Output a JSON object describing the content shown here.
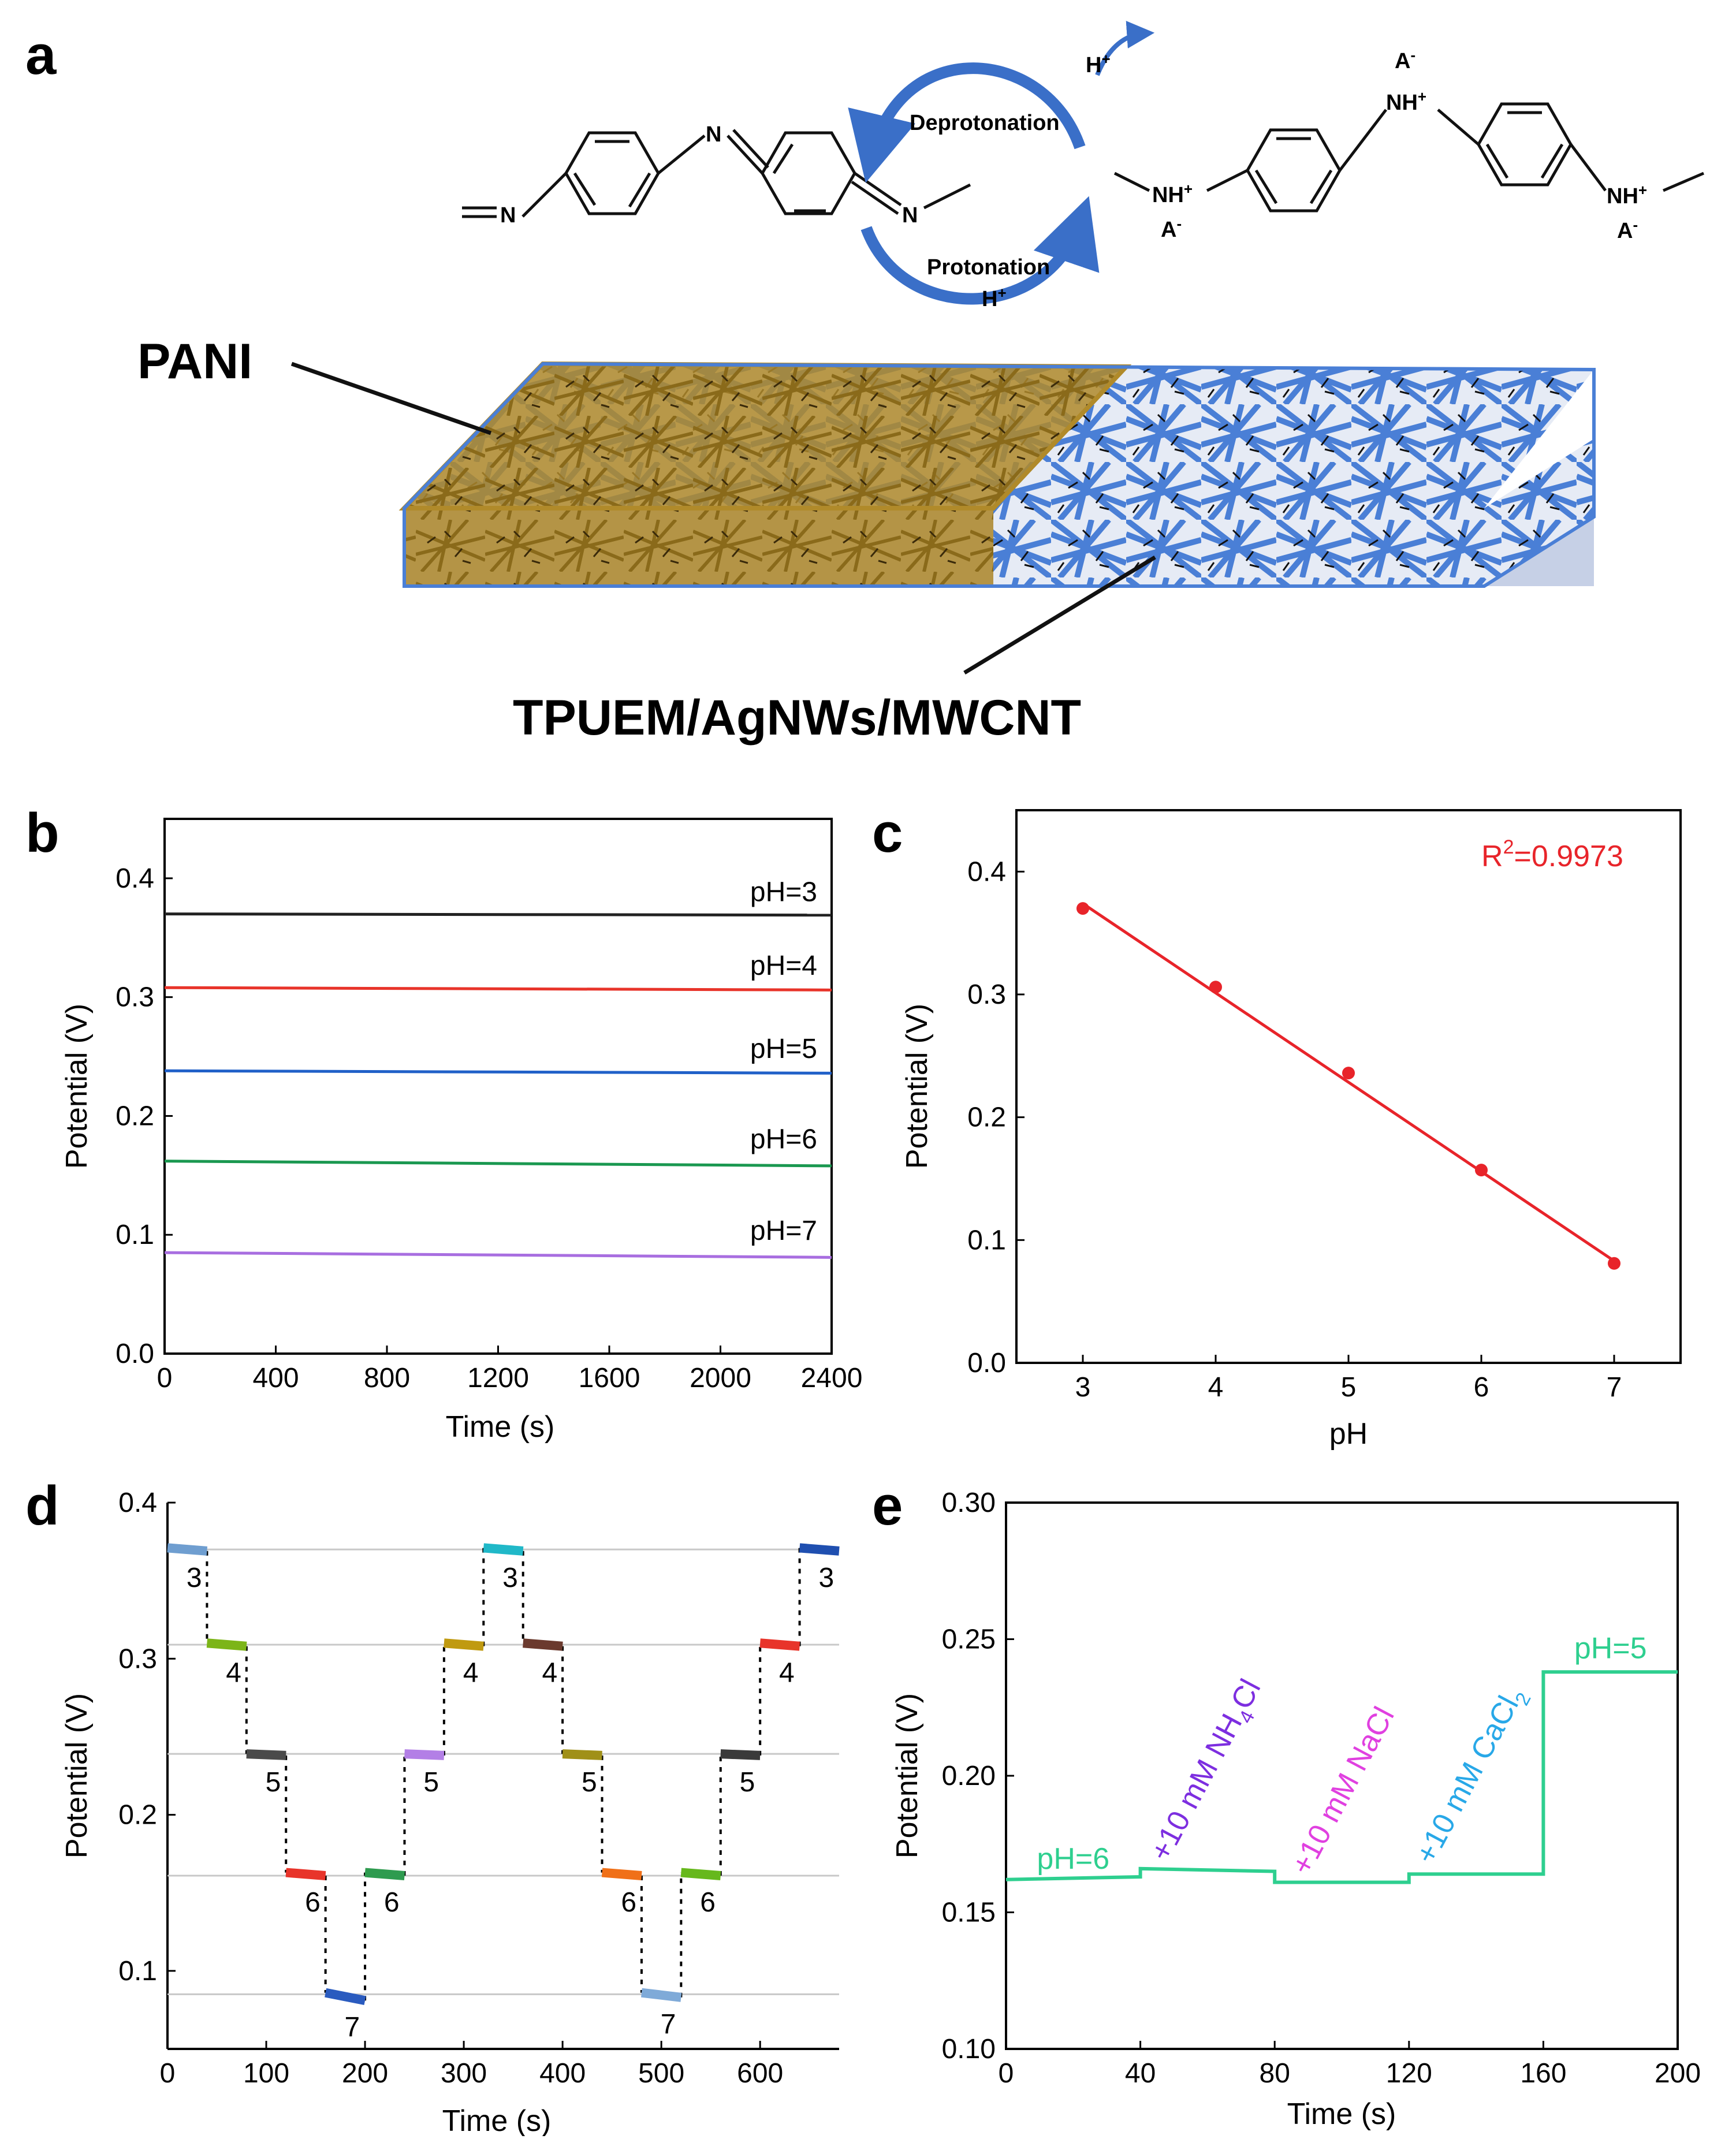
{
  "panel_a": {
    "letter": "a",
    "cycle_top": "Deprotonation",
    "cycle_top_ion": "H",
    "cycle_bottom": "Protonation",
    "cycle_bottom_ion": "H",
    "charge_plus": "+",
    "charge_minus": "-",
    "label_pani": "PANI",
    "label_base": "TPUEM/AgNWs/MWCNT",
    "atom_n": "N",
    "atom_nh": "NH",
    "atom_a": "A"
  },
  "panel_letters": {
    "b": "b",
    "c": "c",
    "d": "d",
    "e": "e"
  },
  "chart_data": [
    {
      "panel": "b",
      "type": "line",
      "title": "",
      "xlabel": "Time (s)",
      "ylabel": "Potential (V)",
      "xlim": [
        0,
        2400
      ],
      "ylim": [
        0.0,
        0.45
      ],
      "xticks": [
        "0",
        "400",
        "800",
        "1200",
        "1600",
        "2000",
        "2400"
      ],
      "yticks": [
        "0.0",
        "0.1",
        "0.2",
        "0.3",
        "0.4"
      ],
      "series": [
        {
          "name": "pH=3",
          "color": "#222222",
          "x": [
            0,
            2400
          ],
          "values": [
            0.37,
            0.369
          ]
        },
        {
          "name": "pH=4",
          "color": "#e8342a",
          "x": [
            0,
            2400
          ],
          "values": [
            0.308,
            0.306
          ]
        },
        {
          "name": "pH=5",
          "color": "#2060c8",
          "x": [
            0,
            2400
          ],
          "values": [
            0.238,
            0.236
          ]
        },
        {
          "name": "pH=6",
          "color": "#1a9850",
          "x": [
            0,
            2400
          ],
          "values": [
            0.162,
            0.158
          ]
        },
        {
          "name": "pH=7",
          "color": "#a86ee0",
          "x": [
            0,
            2400
          ],
          "values": [
            0.085,
            0.081
          ]
        }
      ]
    },
    {
      "panel": "c",
      "type": "scatter",
      "title": "",
      "xlabel": "pH",
      "ylabel": "Potential (V)",
      "xlim": [
        2.5,
        7.5
      ],
      "ylim": [
        0.0,
        0.45
      ],
      "xticks": [
        "3",
        "4",
        "5",
        "6",
        "7"
      ],
      "yticks": [
        "0.0",
        "0.1",
        "0.2",
        "0.3",
        "0.4"
      ],
      "color": "#e8242a",
      "points": {
        "x": [
          3,
          4,
          5,
          6,
          7
        ],
        "y": [
          0.37,
          0.306,
          0.236,
          0.157,
          0.081
        ]
      },
      "fit": {
        "x": [
          3,
          7
        ],
        "y": [
          0.374,
          0.083
        ]
      },
      "annotation": {
        "base": "R",
        "sup": "2",
        "rest": "=0.9973"
      }
    },
    {
      "panel": "d",
      "type": "line",
      "title": "",
      "xlabel": "Time (s)",
      "ylabel": "Potential (V)",
      "xlim": [
        0,
        680
      ],
      "ylim": [
        0.05,
        0.4
      ],
      "xticks": [
        "0",
        "100",
        "200",
        "300",
        "400",
        "500",
        "600"
      ],
      "yticks": [
        "0.1",
        "0.2",
        "0.3",
        "0.4"
      ],
      "guides": [
        0.37,
        0.309,
        0.239,
        0.161,
        0.085
      ],
      "segments": [
        {
          "label": "3",
          "t0": 0,
          "t1": 40,
          "v0": 0.371,
          "v1": 0.369,
          "color": "#6f9ed0"
        },
        {
          "label": "4",
          "t0": 40,
          "t1": 80,
          "v0": 0.31,
          "v1": 0.308,
          "color": "#7cb518"
        },
        {
          "label": "5",
          "t0": 80,
          "t1": 120,
          "v0": 0.239,
          "v1": 0.238,
          "color": "#4a4a4a"
        },
        {
          "label": "6",
          "t0": 120,
          "t1": 160,
          "v0": 0.163,
          "v1": 0.161,
          "color": "#e8342a"
        },
        {
          "label": "7",
          "t0": 160,
          "t1": 200,
          "v0": 0.086,
          "v1": 0.081,
          "color": "#2a5bbf"
        },
        {
          "label": "6",
          "t0": 200,
          "t1": 240,
          "v0": 0.163,
          "v1": 0.161,
          "color": "#2e9b4f"
        },
        {
          "label": "5",
          "t0": 240,
          "t1": 280,
          "v0": 0.239,
          "v1": 0.238,
          "color": "#b37fe6"
        },
        {
          "label": "4",
          "t0": 280,
          "t1": 320,
          "v0": 0.31,
          "v1": 0.308,
          "color": "#c09a10"
        },
        {
          "label": "3",
          "t0": 320,
          "t1": 360,
          "v0": 0.371,
          "v1": 0.369,
          "color": "#20b8c8"
        },
        {
          "label": "4",
          "t0": 360,
          "t1": 400,
          "v0": 0.31,
          "v1": 0.308,
          "color": "#6b3a2e"
        },
        {
          "label": "5",
          "t0": 400,
          "t1": 440,
          "v0": 0.239,
          "v1": 0.238,
          "color": "#a09018"
        },
        {
          "label": "6",
          "t0": 440,
          "t1": 480,
          "v0": 0.163,
          "v1": 0.161,
          "color": "#f07018"
        },
        {
          "label": "7",
          "t0": 480,
          "t1": 520,
          "v0": 0.086,
          "v1": 0.083,
          "color": "#7faad8"
        },
        {
          "label": "6",
          "t0": 520,
          "t1": 560,
          "v0": 0.163,
          "v1": 0.161,
          "color": "#66b81c"
        },
        {
          "label": "5",
          "t0": 560,
          "t1": 600,
          "v0": 0.239,
          "v1": 0.238,
          "color": "#3a3a3a"
        },
        {
          "label": "4",
          "t0": 600,
          "t1": 640,
          "v0": 0.31,
          "v1": 0.308,
          "color": "#e8342a"
        },
        {
          "label": "3",
          "t0": 640,
          "t1": 680,
          "v0": 0.371,
          "v1": 0.369,
          "color": "#1f4fb0"
        }
      ]
    },
    {
      "panel": "e",
      "type": "line",
      "title": "",
      "xlabel": "Time (s)",
      "ylabel": "Potential (V)",
      "xlim": [
        0,
        200
      ],
      "ylim": [
        0.1,
        0.3
      ],
      "xticks": [
        "0",
        "40",
        "80",
        "120",
        "160",
        "200"
      ],
      "yticks": [
        "0.10",
        "0.15",
        "0.20",
        "0.25",
        "0.30"
      ],
      "color": "#2ecf8f",
      "series": [
        {
          "name": "potential",
          "x": [
            0,
            40,
            40,
            80,
            80,
            120,
            120,
            160,
            160,
            200
          ],
          "values": [
            0.162,
            0.163,
            0.166,
            0.165,
            0.161,
            0.161,
            0.164,
            0.164,
            0.238,
            0.238
          ]
        }
      ],
      "annotations": [
        {
          "name": "ph6",
          "base": "pH=6",
          "sub": "",
          "rest": "",
          "color": "#2ecf8f",
          "t": 20,
          "v": 0.166,
          "rotate": false
        },
        {
          "name": "nh4cl",
          "base": "+10 mM NH",
          "sub": "4",
          "rest": "Cl",
          "color": "#7d2ee0",
          "t": 48,
          "v": 0.168,
          "rotate": true
        },
        {
          "name": "nacl",
          "base": "+10 mM NaCl",
          "sub": "",
          "rest": "",
          "color": "#e040e0",
          "t": 90,
          "v": 0.163,
          "rotate": true
        },
        {
          "name": "cacl2",
          "base": "+10 mM CaCl",
          "sub": "2",
          "rest": "",
          "color": "#28a8e8",
          "t": 127,
          "v": 0.167,
          "rotate": true
        },
        {
          "name": "ph5",
          "base": "pH=5",
          "sub": "",
          "rest": "",
          "color": "#2ecf8f",
          "t": 180,
          "v": 0.243,
          "rotate": false
        }
      ]
    }
  ]
}
